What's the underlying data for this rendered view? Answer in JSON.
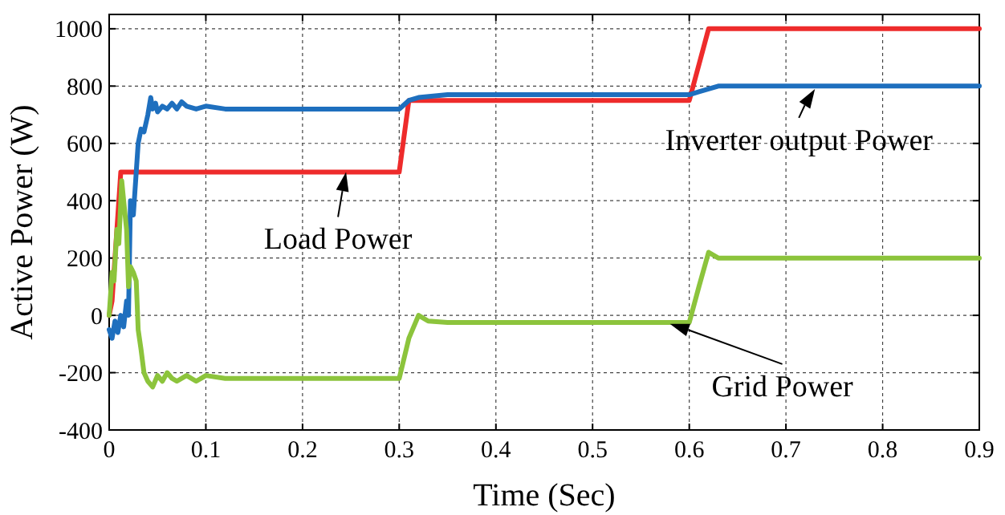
{
  "chart_data": {
    "type": "line",
    "xlabel": "Time (Sec)",
    "ylabel": "Active Power (W)",
    "xlim": [
      0,
      0.9
    ],
    "ylim": [
      -400,
      1050
    ],
    "xticks": [
      0,
      0.1,
      0.2,
      0.3,
      0.4,
      0.5,
      0.6,
      0.7,
      0.8,
      0.9
    ],
    "yticks": [
      -400,
      -200,
      0,
      200,
      400,
      600,
      800,
      1000
    ],
    "grid": true,
    "marker": "none",
    "line_style": "solid",
    "series": [
      {
        "color": "#ee2b2b",
        "x": [
          0,
          0.003,
          0.006,
          0.009,
          0.012,
          0.3,
          0.31,
          0.6,
          0.62,
          0.9
        ],
        "values": [
          0,
          50,
          200,
          350,
          500,
          500,
          750,
          750,
          1000,
          1000
        ]
      },
      {
        "color": "#1e6fbe",
        "x": [
          0,
          0.003,
          0.006,
          0.009,
          0.012,
          0.015,
          0.018,
          0.02,
          0.022,
          0.025,
          0.028,
          0.03,
          0.033,
          0.036,
          0.04,
          0.043,
          0.045,
          0.048,
          0.05,
          0.055,
          0.06,
          0.065,
          0.07,
          0.075,
          0.08,
          0.09,
          0.1,
          0.12,
          0.15,
          0.3,
          0.31,
          0.32,
          0.35,
          0.6,
          0.61,
          0.62,
          0.63,
          0.9
        ],
        "values": [
          -50,
          -80,
          -20,
          -60,
          0,
          -40,
          50,
          0,
          400,
          350,
          500,
          600,
          650,
          640,
          700,
          760,
          720,
          740,
          710,
          730,
          720,
          740,
          720,
          745,
          730,
          720,
          730,
          720,
          720,
          720,
          750,
          760,
          770,
          770,
          780,
          790,
          800,
          800
        ]
      },
      {
        "color": "#8cc43c",
        "x": [
          0,
          0.003,
          0.005,
          0.008,
          0.01,
          0.013,
          0.015,
          0.018,
          0.02,
          0.022,
          0.025,
          0.028,
          0.03,
          0.033,
          0.036,
          0.04,
          0.045,
          0.05,
          0.055,
          0.06,
          0.065,
          0.07,
          0.08,
          0.09,
          0.1,
          0.12,
          0.15,
          0.3,
          0.31,
          0.32,
          0.33,
          0.35,
          0.6,
          0.61,
          0.62,
          0.63,
          0.9
        ],
        "values": [
          0,
          150,
          120,
          300,
          250,
          470,
          400,
          300,
          100,
          170,
          150,
          120,
          -50,
          -120,
          -200,
          -230,
          -250,
          -210,
          -230,
          -200,
          -220,
          -230,
          -210,
          -230,
          -210,
          -220,
          -220,
          -220,
          -80,
          0,
          -20,
          -25,
          -25,
          100,
          220,
          200,
          200
        ]
      }
    ],
    "annotations": [
      {
        "text": "Load Power",
        "x": 0.245,
        "y": 500
      },
      {
        "text": "Inverter output Power",
        "x": 0.73,
        "y": 790
      },
      {
        "text": "Grid Power",
        "x": 0.58,
        "y": -30
      }
    ]
  }
}
